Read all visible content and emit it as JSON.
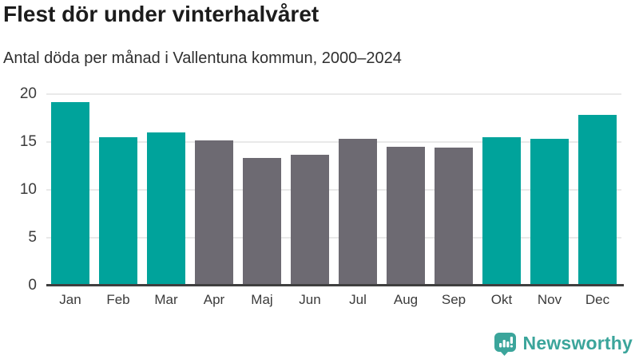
{
  "header": {
    "title": "Flest dör under vinterhalvåret",
    "subtitle": "Antal döda per månad i Vallentuna kommun, 2000–2024"
  },
  "chart_data": {
    "type": "bar",
    "title": "Flest dör under vinterhalvåret",
    "subtitle": "Antal döda per månad i Vallentuna kommun, 2000–2024",
    "categories": [
      "Jan",
      "Feb",
      "Mar",
      "Apr",
      "Maj",
      "Jun",
      "Jul",
      "Aug",
      "Sep",
      "Okt",
      "Nov",
      "Dec"
    ],
    "values": [
      19.2,
      15.5,
      16.0,
      15.2,
      13.3,
      13.7,
      15.3,
      14.5,
      14.4,
      15.5,
      15.3,
      17.8
    ],
    "highlighted": [
      true,
      true,
      true,
      false,
      false,
      false,
      false,
      false,
      false,
      true,
      true,
      true
    ],
    "xlabel": "",
    "ylabel": "",
    "ylim": [
      0,
      20
    ],
    "yticks": [
      0,
      5,
      10,
      15,
      20
    ],
    "grid": true,
    "legend": "none",
    "colors": {
      "highlight": "#00a39b",
      "default": "#6d6a72",
      "gridline": "#e9e9e9",
      "axis_line": "#3f3f3f",
      "text": "#3b3b3b"
    }
  },
  "footer": {
    "brand": "Newsworthy",
    "brand_color": "#3ba59b",
    "logo_icon": "bar-chart-speech-bubble"
  }
}
